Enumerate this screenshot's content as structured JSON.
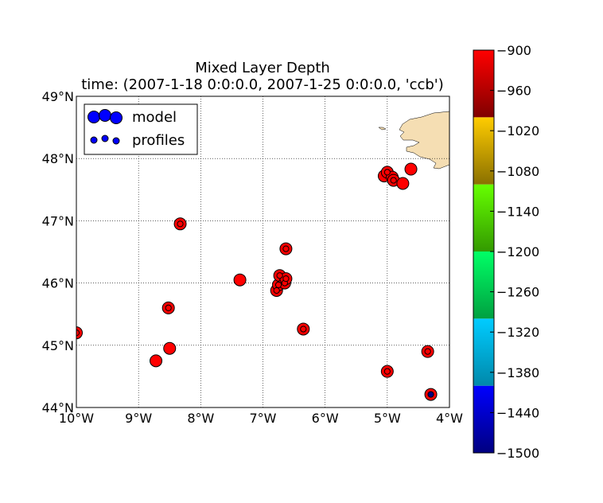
{
  "chart_data": {
    "type": "scatter",
    "title": "Mixed Layer Depth",
    "subtitle": "time: (2007-1-18 0:0:0.0, 2007-1-25 0:0:0.0, 'ccb')",
    "xlim": [
      -10,
      -4
    ],
    "ylim": [
      44,
      49
    ],
    "x_ticks": [
      -10,
      -9,
      -8,
      -7,
      -6,
      -5,
      -4
    ],
    "x_tick_labels": [
      "10°W",
      "9°W",
      "8°W",
      "7°W",
      "6°W",
      "5°W",
      "4°W"
    ],
    "y_ticks": [
      44,
      45,
      46,
      47,
      48,
      49
    ],
    "y_tick_labels": [
      "44°N",
      "45°N",
      "46°N",
      "47°N",
      "48°N",
      "49°N"
    ],
    "grid": true,
    "legend_position": "top-left",
    "legend": [
      {
        "label": "model",
        "marker": "large-circle"
      },
      {
        "label": "profiles",
        "marker": "small-circle"
      }
    ],
    "land_color": "#f5deb3",
    "colorbar": {
      "min": -1500,
      "max": -900,
      "tick_values": [
        -900,
        -960,
        -1020,
        -1080,
        -1140,
        -1200,
        -1260,
        -1320,
        -1380,
        -1440,
        -1500
      ],
      "tick_labels": [
        "−900",
        "−960",
        "−1020",
        "−1080",
        "−1140",
        "−1200",
        "−1260",
        "−1320",
        "−1380",
        "−1440",
        "−1500"
      ],
      "bands": [
        {
          "from": -1500,
          "to": -1400,
          "top": "#0000ff",
          "bottom": "#000080"
        },
        {
          "from": -1400,
          "to": -1300,
          "top": "#00ccff",
          "bottom": "#0088aa"
        },
        {
          "from": -1300,
          "to": -1200,
          "top": "#00ff66",
          "bottom": "#00a040"
        },
        {
          "from": -1200,
          "to": -1100,
          "top": "#66ff00",
          "bottom": "#339900"
        },
        {
          "from": -1100,
          "to": -1000,
          "top": "#ffcc00",
          "bottom": "#8a7000"
        },
        {
          "from": -1000,
          "to": -900,
          "top": "#ff0000",
          "bottom": "#800000"
        }
      ]
    },
    "series": [
      {
        "name": "model",
        "marker": "large-circle",
        "points": [
          {
            "lon": -10.0,
            "lat": 45.2,
            "value": -900
          },
          {
            "lon": -8.72,
            "lat": 44.75,
            "value": -900
          },
          {
            "lon": -8.5,
            "lat": 44.95,
            "value": -900
          },
          {
            "lon": -8.52,
            "lat": 45.6,
            "value": -900
          },
          {
            "lon": -8.33,
            "lat": 46.95,
            "value": -900
          },
          {
            "lon": -7.37,
            "lat": 46.05,
            "value": -900
          },
          {
            "lon": -6.78,
            "lat": 45.88,
            "value": -900
          },
          {
            "lon": -6.75,
            "lat": 45.97,
            "value": -900
          },
          {
            "lon": -6.73,
            "lat": 46.12,
            "value": -900
          },
          {
            "lon": -6.65,
            "lat": 46.0,
            "value": -900
          },
          {
            "lon": -6.63,
            "lat": 46.07,
            "value": -900
          },
          {
            "lon": -6.63,
            "lat": 46.55,
            "value": -900
          },
          {
            "lon": -6.35,
            "lat": 45.26,
            "value": -900
          },
          {
            "lon": -5.05,
            "lat": 47.72,
            "value": -900
          },
          {
            "lon": -5.0,
            "lat": 47.78,
            "value": -900
          },
          {
            "lon": -4.92,
            "lat": 47.7,
            "value": -900
          },
          {
            "lon": -4.9,
            "lat": 47.65,
            "value": -900
          },
          {
            "lon": -4.75,
            "lat": 47.6,
            "value": -900
          },
          {
            "lon": -4.62,
            "lat": 47.83,
            "value": -900
          },
          {
            "lon": -5.0,
            "lat": 44.58,
            "value": -900
          },
          {
            "lon": -4.35,
            "lat": 44.9,
            "value": -900
          },
          {
            "lon": -4.3,
            "lat": 44.21,
            "value": -900
          }
        ]
      },
      {
        "name": "profiles",
        "marker": "small-circle",
        "points": [
          {
            "lon": -10.0,
            "lat": 45.2,
            "value": -900
          },
          {
            "lon": -8.52,
            "lat": 45.6,
            "value": -900
          },
          {
            "lon": -8.33,
            "lat": 46.95,
            "value": -900
          },
          {
            "lon": -6.78,
            "lat": 45.88,
            "value": -900
          },
          {
            "lon": -6.75,
            "lat": 45.97,
            "value": -900
          },
          {
            "lon": -6.73,
            "lat": 46.12,
            "value": -900
          },
          {
            "lon": -6.65,
            "lat": 46.0,
            "value": -900
          },
          {
            "lon": -6.63,
            "lat": 46.07,
            "value": -900
          },
          {
            "lon": -6.63,
            "lat": 46.55,
            "value": -900
          },
          {
            "lon": -6.35,
            "lat": 45.26,
            "value": -900
          },
          {
            "lon": -5.0,
            "lat": 47.78,
            "value": -900
          },
          {
            "lon": -4.9,
            "lat": 47.65,
            "value": -900
          },
          {
            "lon": -5.0,
            "lat": 44.58,
            "value": -900
          },
          {
            "lon": -4.35,
            "lat": 44.9,
            "value": -900
          },
          {
            "lon": -4.3,
            "lat": 44.21,
            "value": -1500
          }
        ]
      }
    ]
  }
}
